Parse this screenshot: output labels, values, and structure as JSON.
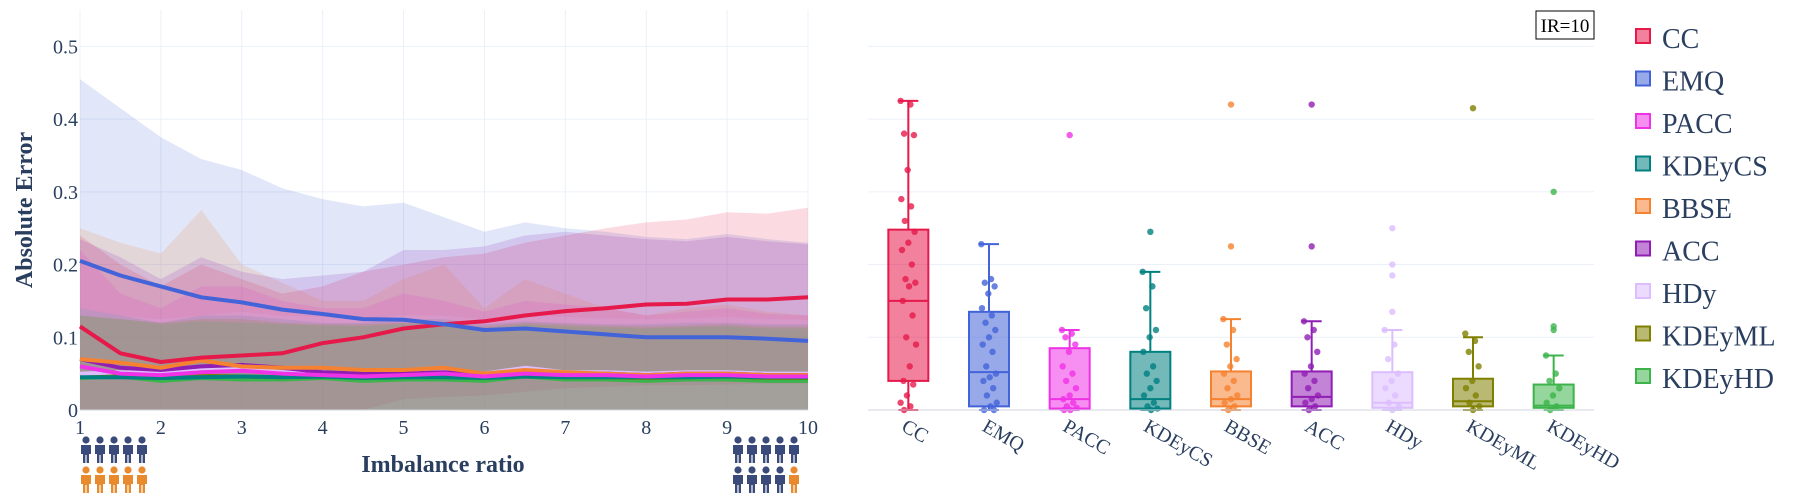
{
  "chart_data": [
    {
      "type": "line",
      "xlabel": "Imbalance ratio",
      "ylabel": "Absolute Error",
      "xlim": [
        1,
        10
      ],
      "ylim": [
        0,
        0.55
      ],
      "x_ticks": [
        "1",
        "2",
        "3",
        "4",
        "5",
        "6",
        "7",
        "8",
        "9",
        "10"
      ],
      "y_ticks": [
        "0",
        "0.1",
        "0.2",
        "0.3",
        "0.4",
        "0.5"
      ],
      "grid": true,
      "x": [
        1,
        1.5,
        2,
        2.5,
        3,
        3.5,
        4,
        4.5,
        5,
        5.5,
        6,
        6.5,
        7,
        7.5,
        8,
        8.5,
        9,
        9.5,
        10
      ],
      "series": [
        {
          "name": "EMQ",
          "color": "#4363d8",
          "values": [
            0.205,
            0.185,
            0.17,
            0.155,
            0.148,
            0.138,
            0.132,
            0.125,
            0.124,
            0.118,
            0.11,
            0.112,
            0.108,
            0.104,
            0.1,
            0.1,
            0.1,
            0.098,
            0.095
          ],
          "upper": [
            0.455,
            0.415,
            0.375,
            0.345,
            0.33,
            0.305,
            0.29,
            0.28,
            0.285,
            0.265,
            0.245,
            0.258,
            0.25,
            0.245,
            0.238,
            0.235,
            0.242,
            0.235,
            0.23
          ],
          "lower": [
            0.0,
            0.0,
            0.0,
            0.0,
            0.0,
            0.0,
            0.0,
            0.0,
            0.0,
            0.0,
            0.0,
            0.0,
            0.0,
            0.0,
            0.0,
            0.0,
            0.0,
            0.0,
            0.0
          ]
        },
        {
          "name": "CC",
          "color": "#e6194b",
          "values": [
            0.115,
            0.078,
            0.066,
            0.072,
            0.075,
            0.078,
            0.092,
            0.1,
            0.112,
            0.118,
            0.122,
            0.13,
            0.136,
            0.14,
            0.145,
            0.146,
            0.152,
            0.152,
            0.155
          ],
          "upper": [
            0.24,
            0.2,
            0.17,
            0.2,
            0.18,
            0.16,
            0.17,
            0.19,
            0.2,
            0.21,
            0.215,
            0.23,
            0.24,
            0.25,
            0.258,
            0.262,
            0.272,
            0.27,
            0.278
          ],
          "lower": [
            0.0,
            0.0,
            0.0,
            0.0,
            0.0,
            0.0,
            0.0,
            0.0,
            0.015,
            0.018,
            0.02,
            0.025,
            0.03,
            0.032,
            0.034,
            0.034,
            0.035,
            0.036,
            0.036
          ]
        },
        {
          "name": "PACC",
          "color": "#f032e6",
          "values": [
            0.06,
            0.05,
            0.048,
            0.052,
            0.054,
            0.05,
            0.048,
            0.046,
            0.048,
            0.05,
            0.046,
            0.05,
            0.048,
            0.048,
            0.046,
            0.048,
            0.048,
            0.046,
            0.046
          ],
          "upper": [
            0.22,
            0.16,
            0.14,
            0.17,
            0.17,
            0.15,
            0.14,
            0.14,
            0.16,
            0.15,
            0.135,
            0.15,
            0.145,
            0.14,
            0.13,
            0.135,
            0.14,
            0.132,
            0.13
          ],
          "lower": [
            0,
            0,
            0,
            0,
            0,
            0,
            0,
            0,
            0,
            0,
            0,
            0,
            0,
            0,
            0,
            0,
            0,
            0,
            0
          ]
        },
        {
          "name": "KDEyCS",
          "color": "#008080",
          "values": [
            0.045,
            0.045,
            0.044,
            0.045,
            0.046,
            0.045,
            0.046,
            0.044,
            0.045,
            0.045,
            0.044,
            0.046,
            0.045,
            0.045,
            0.045,
            0.045,
            0.046,
            0.045,
            0.045
          ],
          "upper": [
            0.14,
            0.13,
            0.12,
            0.13,
            0.13,
            0.125,
            0.12,
            0.12,
            0.125,
            0.125,
            0.118,
            0.122,
            0.12,
            0.118,
            0.118,
            0.12,
            0.12,
            0.118,
            0.118
          ],
          "lower": [
            0,
            0,
            0,
            0,
            0,
            0,
            0,
            0,
            0,
            0,
            0,
            0,
            0,
            0,
            0,
            0,
            0,
            0,
            0
          ]
        },
        {
          "name": "BBSE",
          "color": "#f58231",
          "values": [
            0.07,
            0.065,
            0.058,
            0.068,
            0.06,
            0.058,
            0.058,
            0.055,
            0.055,
            0.058,
            0.05,
            0.055,
            0.052,
            0.05,
            0.048,
            0.05,
            0.05,
            0.048,
            0.048
          ],
          "upper": [
            0.25,
            0.23,
            0.215,
            0.275,
            0.2,
            0.175,
            0.15,
            0.15,
            0.18,
            0.2,
            0.14,
            0.18,
            0.16,
            0.14,
            0.13,
            0.14,
            0.145,
            0.135,
            0.13
          ],
          "lower": [
            0,
            0,
            0,
            0,
            0,
            0,
            0,
            0,
            0,
            0,
            0,
            0,
            0,
            0,
            0,
            0,
            0,
            0,
            0
          ]
        },
        {
          "name": "ACC",
          "color": "#911eb4",
          "values": [
            0.07,
            0.058,
            0.055,
            0.06,
            0.062,
            0.058,
            0.052,
            0.05,
            0.05,
            0.052,
            0.048,
            0.05,
            0.05,
            0.05,
            0.048,
            0.05,
            0.05,
            0.048,
            0.048
          ],
          "upper": [
            0.235,
            0.21,
            0.18,
            0.21,
            0.19,
            0.18,
            0.185,
            0.19,
            0.22,
            0.22,
            0.225,
            0.24,
            0.245,
            0.24,
            0.235,
            0.232,
            0.238,
            0.232,
            0.228
          ],
          "lower": [
            0,
            0,
            0,
            0,
            0,
            0,
            0,
            0,
            0,
            0,
            0,
            0,
            0,
            0,
            0,
            0,
            0,
            0,
            0
          ]
        },
        {
          "name": "HDy",
          "color": "#dcbeff",
          "values": [
            0.05,
            0.052,
            0.05,
            0.055,
            0.056,
            0.052,
            0.052,
            0.05,
            0.052,
            0.054,
            0.05,
            0.058,
            0.052,
            0.052,
            0.05,
            0.052,
            0.052,
            0.05,
            0.05
          ],
          "upper": [
            0.14,
            0.13,
            0.125,
            0.13,
            0.135,
            0.13,
            0.128,
            0.126,
            0.13,
            0.13,
            0.125,
            0.13,
            0.128,
            0.126,
            0.125,
            0.126,
            0.128,
            0.125,
            0.124
          ],
          "lower": [
            0,
            0,
            0,
            0,
            0,
            0,
            0,
            0,
            0,
            0,
            0,
            0,
            0,
            0,
            0,
            0,
            0,
            0,
            0
          ]
        },
        {
          "name": "KDEyML",
          "color": "#808000",
          "values": [
            0.046,
            0.047,
            0.045,
            0.047,
            0.046,
            0.045,
            0.046,
            0.045,
            0.046,
            0.046,
            0.044,
            0.048,
            0.045,
            0.045,
            0.044,
            0.045,
            0.046,
            0.044,
            0.044
          ],
          "upper": [
            0.13,
            0.125,
            0.12,
            0.125,
            0.125,
            0.12,
            0.118,
            0.118,
            0.12,
            0.12,
            0.115,
            0.12,
            0.118,
            0.116,
            0.115,
            0.116,
            0.118,
            0.115,
            0.115
          ],
          "lower": [
            0,
            0,
            0,
            0,
            0,
            0,
            0,
            0,
            0,
            0,
            0,
            0,
            0,
            0,
            0,
            0,
            0,
            0,
            0
          ]
        },
        {
          "name": "KDEyHD",
          "color": "#3cb44b",
          "values": [
            0.044,
            0.046,
            0.04,
            0.044,
            0.042,
            0.042,
            0.044,
            0.04,
            0.042,
            0.042,
            0.04,
            0.046,
            0.042,
            0.042,
            0.04,
            0.042,
            0.042,
            0.04,
            0.04
          ],
          "upper": [
            0.13,
            0.125,
            0.118,
            0.122,
            0.12,
            0.118,
            0.116,
            0.115,
            0.118,
            0.118,
            0.112,
            0.118,
            0.115,
            0.114,
            0.112,
            0.114,
            0.115,
            0.112,
            0.112
          ],
          "lower": [
            0,
            0,
            0,
            0,
            0,
            0,
            0,
            0,
            0,
            0,
            0,
            0,
            0,
            0,
            0,
            0,
            0,
            0,
            0
          ]
        }
      ]
    },
    {
      "type": "box",
      "annotation": "IR=10",
      "categories": [
        "CC",
        "EMQ",
        "PACC",
        "KDEyCS",
        "BBSE",
        "ACC",
        "HDy",
        "KDEyML",
        "KDEyHD"
      ],
      "ylim": [
        0,
        0.55
      ],
      "grid": true,
      "boxes": [
        {
          "name": "CC",
          "color": "#e6194b",
          "q1": 0.04,
          "median": 0.15,
          "q3": 0.248,
          "lower_fence": 0.0,
          "upper_fence": 0.425,
          "outliers": [],
          "points": [
            0.425,
            0.42,
            0.38,
            0.378,
            0.33,
            0.29,
            0.28,
            0.26,
            0.245,
            0.23,
            0.22,
            0.2,
            0.18,
            0.175,
            0.17,
            0.15,
            0.13,
            0.1,
            0.09,
            0.06,
            0.04,
            0.035,
            0.02,
            0.01,
            0.005,
            0.0
          ]
        },
        {
          "name": "EMQ",
          "color": "#4363d8",
          "q1": 0.005,
          "median": 0.052,
          "q3": 0.135,
          "lower_fence": 0.0,
          "upper_fence": 0.228,
          "outliers": [],
          "points": [
            0.228,
            0.18,
            0.175,
            0.17,
            0.16,
            0.14,
            0.13,
            0.12,
            0.11,
            0.1,
            0.09,
            0.08,
            0.06,
            0.05,
            0.045,
            0.04,
            0.03,
            0.02,
            0.01,
            0.005,
            0.0,
            0.0
          ]
        },
        {
          "name": "PACC",
          "color": "#f032e6",
          "q1": 0.002,
          "median": 0.015,
          "q3": 0.085,
          "lower_fence": 0.0,
          "upper_fence": 0.11,
          "outliers": [
            0.378
          ],
          "points": [
            0.11,
            0.105,
            0.1,
            0.09,
            0.08,
            0.06,
            0.05,
            0.04,
            0.03,
            0.02,
            0.015,
            0.01,
            0.005,
            0.003,
            0.0,
            0.0
          ]
        },
        {
          "name": "KDEyCS",
          "color": "#008080",
          "q1": 0.002,
          "median": 0.015,
          "q3": 0.08,
          "lower_fence": 0.0,
          "upper_fence": 0.19,
          "outliers": [
            0.245
          ],
          "points": [
            0.19,
            0.17,
            0.14,
            0.11,
            0.1,
            0.08,
            0.06,
            0.05,
            0.04,
            0.03,
            0.02,
            0.01,
            0.005,
            0.002,
            0.0
          ]
        },
        {
          "name": "BBSE",
          "color": "#f58231",
          "q1": 0.005,
          "median": 0.015,
          "q3": 0.053,
          "lower_fence": 0.0,
          "upper_fence": 0.125,
          "outliers": [
            0.42,
            0.225
          ],
          "points": [
            0.125,
            0.11,
            0.09,
            0.07,
            0.06,
            0.05,
            0.04,
            0.03,
            0.02,
            0.015,
            0.01,
            0.005,
            0.0
          ]
        },
        {
          "name": "ACC",
          "color": "#911eb4",
          "q1": 0.005,
          "median": 0.018,
          "q3": 0.053,
          "lower_fence": 0.0,
          "upper_fence": 0.122,
          "outliers": [
            0.42,
            0.225
          ],
          "points": [
            0.122,
            0.11,
            0.1,
            0.08,
            0.06,
            0.05,
            0.04,
            0.03,
            0.02,
            0.015,
            0.01,
            0.005,
            0.0
          ]
        },
        {
          "name": "HDy",
          "color": "#dcbeff",
          "q1": 0.003,
          "median": 0.01,
          "q3": 0.052,
          "lower_fence": 0.0,
          "upper_fence": 0.11,
          "outliers": [
            0.25,
            0.2,
            0.185,
            0.135
          ],
          "points": [
            0.11,
            0.09,
            0.07,
            0.05,
            0.04,
            0.03,
            0.02,
            0.01,
            0.005,
            0.0
          ]
        },
        {
          "name": "KDEyML",
          "color": "#808000",
          "q1": 0.005,
          "median": 0.012,
          "q3": 0.043,
          "lower_fence": 0.0,
          "upper_fence": 0.1,
          "outliers": [
            0.415
          ],
          "points": [
            0.105,
            0.095,
            0.08,
            0.06,
            0.04,
            0.03,
            0.02,
            0.01,
            0.005,
            0.0
          ]
        },
        {
          "name": "KDEyHD",
          "color": "#3cb44b",
          "q1": 0.003,
          "median": 0.006,
          "q3": 0.035,
          "lower_fence": 0.0,
          "upper_fence": 0.075,
          "outliers": [
            0.3,
            0.115,
            0.11
          ],
          "points": [
            0.075,
            0.05,
            0.04,
            0.03,
            0.02,
            0.01,
            0.005,
            0.0
          ]
        }
      ]
    }
  ],
  "legend": [
    {
      "name": "CC",
      "color": "#e6194b"
    },
    {
      "name": "EMQ",
      "color": "#4363d8"
    },
    {
      "name": "PACC",
      "color": "#f032e6"
    },
    {
      "name": "KDEyCS",
      "color": "#008080"
    },
    {
      "name": "BBSE",
      "color": "#f58231"
    },
    {
      "name": "ACC",
      "color": "#911eb4"
    },
    {
      "name": "HDy",
      "color": "#dcbeff"
    },
    {
      "name": "KDEyML",
      "color": "#808000"
    },
    {
      "name": "KDEyHD",
      "color": "#3cb44b"
    }
  ],
  "icons": {
    "left_group": {
      "majority_color": "#3a4a7a",
      "minority_color": "#e88a2e",
      "majority_count": 5,
      "minority_count": 5
    },
    "right_group": {
      "majority_color": "#3a4a7a",
      "minority_color": "#e88a2e",
      "majority_count": 9,
      "minority_count": 1
    }
  }
}
